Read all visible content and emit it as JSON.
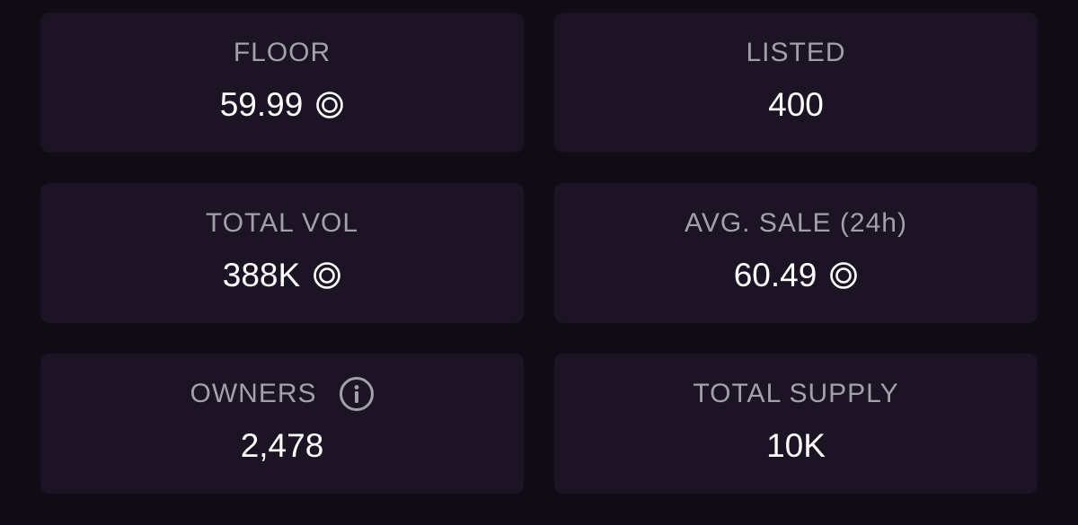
{
  "stats": [
    {
      "label": "FLOOR",
      "value": "59.99",
      "currency_icon": "solana-coin-icon"
    },
    {
      "label": "LISTED",
      "value": "400"
    },
    {
      "label": "TOTAL VOL",
      "value": "388K",
      "currency_icon": "solana-coin-icon"
    },
    {
      "label": "AVG. SALE (24h)",
      "value": "60.49",
      "currency_icon": "solana-coin-icon"
    },
    {
      "label": "OWNERS",
      "value": "2,478",
      "info_icon": "info-icon"
    },
    {
      "label": "TOTAL SUPPLY",
      "value": "10K"
    }
  ],
  "colors": {
    "background": "#100c15",
    "card": "#1c1425",
    "label": "#a59fad",
    "value": "#ffffff"
  }
}
